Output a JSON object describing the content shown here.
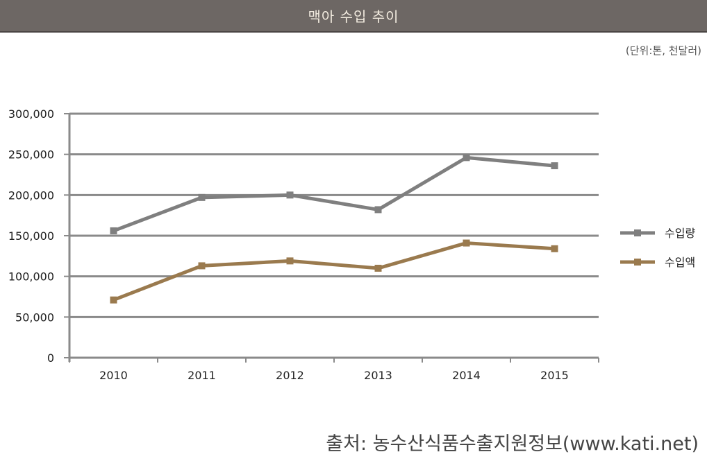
{
  "header": {
    "title": "맥아 수입 추이"
  },
  "unit_note": "(단위:톤, 천달러)",
  "source": "출처: 농수산식품수출지원정보(www.kati.net)",
  "chart_data": {
    "type": "line",
    "title": "맥아 수입 추이",
    "categories": [
      "2010",
      "2011",
      "2012",
      "2013",
      "2014",
      "2015"
    ],
    "series": [
      {
        "name": "수입량",
        "color": "#7f7f7f",
        "values": [
          156000,
          197000,
          200000,
          182000,
          246000,
          236000
        ]
      },
      {
        "name": "수입액",
        "color": "#9a7a4e",
        "values": [
          71000,
          113000,
          119000,
          110000,
          141000,
          134000
        ]
      }
    ],
    "ylim": [
      0,
      300000
    ],
    "yticks": [
      0,
      50000,
      100000,
      150000,
      200000,
      250000,
      300000
    ],
    "ytick_labels": [
      "0",
      "50,000",
      "100,000",
      "150,000",
      "200,000",
      "250,000",
      "300,000"
    ],
    "grid": true,
    "legend_position": "right",
    "gridline_color": "#8a8a8a"
  }
}
